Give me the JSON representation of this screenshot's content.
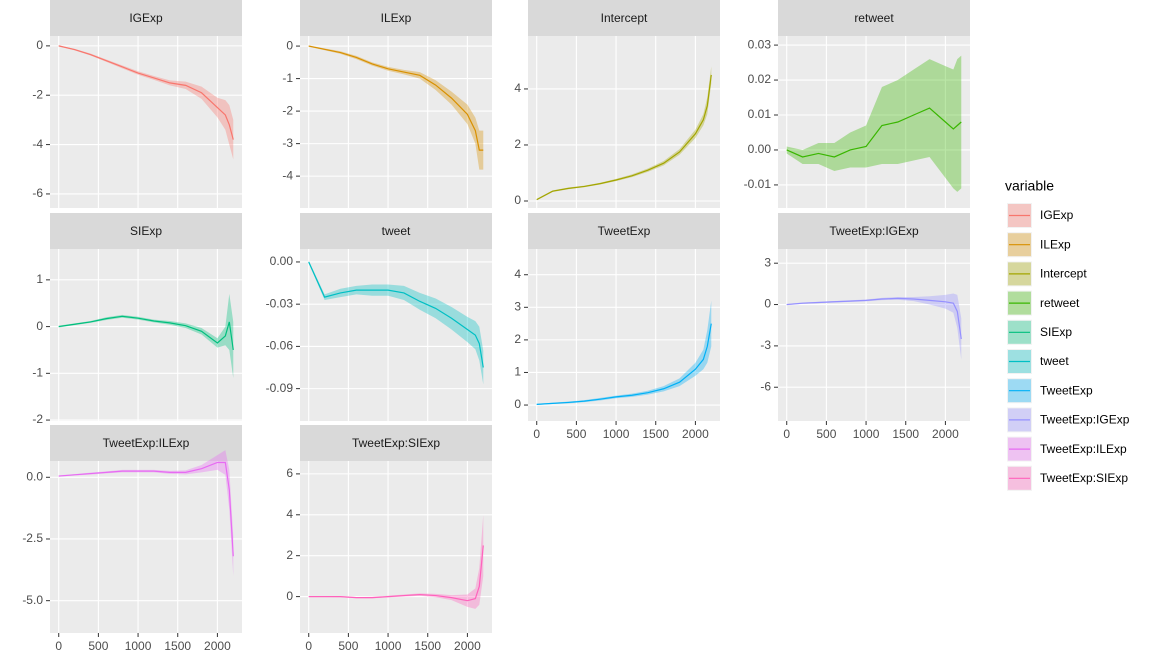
{
  "legend": {
    "title": "variable"
  },
  "chart_data": [
    {
      "type": "line",
      "title": "IGExp",
      "x": [
        0,
        200,
        400,
        600,
        800,
        1000,
        1200,
        1400,
        1600,
        1800,
        2000,
        2100,
        2150,
        2200
      ],
      "series": [
        {
          "name": "IGExp",
          "color": "#F8766D",
          "values": [
            0,
            -0.15,
            -0.35,
            -0.6,
            -0.85,
            -1.1,
            -1.3,
            -1.5,
            -1.6,
            -1.9,
            -2.5,
            -2.8,
            -3.2,
            -3.8
          ],
          "errors": [
            0.02,
            0.03,
            0.04,
            0.05,
            0.06,
            0.07,
            0.08,
            0.1,
            0.15,
            0.25,
            0.4,
            0.6,
            0.8,
            0.8
          ]
        }
      ],
      "xlim": [
        -110,
        2310
      ],
      "xticks": [
        0,
        500,
        1000,
        1500,
        2000
      ],
      "ylim": [
        -6.57,
        0.4
      ],
      "yticks": [
        0,
        -2,
        -4,
        -6
      ],
      "grid": true
    },
    {
      "type": "line",
      "title": "ILExp",
      "x": [
        0,
        200,
        400,
        600,
        800,
        1000,
        1200,
        1400,
        1600,
        1800,
        2000,
        2100,
        2150,
        2200
      ],
      "series": [
        {
          "name": "ILExp",
          "color": "#D89000",
          "values": [
            0,
            -0.1,
            -0.2,
            -0.35,
            -0.55,
            -0.7,
            -0.8,
            -0.9,
            -1.2,
            -1.6,
            -2.1,
            -2.6,
            -3.2,
            -3.2
          ],
          "errors": [
            0.02,
            0.03,
            0.04,
            0.05,
            0.05,
            0.06,
            0.07,
            0.1,
            0.15,
            0.2,
            0.3,
            0.4,
            0.6,
            0.6
          ]
        }
      ],
      "xlim": [
        -110,
        2310
      ],
      "xticks": [
        0,
        500,
        1000,
        1500,
        2000
      ],
      "ylim": [
        -4.98,
        0.31
      ],
      "yticks": [
        0,
        -1,
        -2,
        -3,
        -4
      ],
      "grid": true
    },
    {
      "type": "line",
      "title": "Intercept",
      "x": [
        0,
        200,
        400,
        600,
        800,
        1000,
        1200,
        1400,
        1600,
        1800,
        2000,
        2100,
        2150,
        2200
      ],
      "series": [
        {
          "name": "Intercept",
          "color": "#A3A500",
          "values": [
            0.05,
            0.35,
            0.45,
            0.52,
            0.62,
            0.75,
            0.9,
            1.1,
            1.35,
            1.75,
            2.4,
            2.9,
            3.4,
            4.5
          ],
          "errors": [
            0.03,
            0.03,
            0.03,
            0.03,
            0.03,
            0.04,
            0.05,
            0.06,
            0.08,
            0.1,
            0.15,
            0.2,
            0.3,
            0.3
          ]
        }
      ],
      "xlim": [
        -110,
        2310
      ],
      "xticks": [
        0,
        500,
        1000,
        1500,
        2000
      ],
      "ylim": [
        -0.25,
        5.89
      ],
      "yticks": [
        0,
        2,
        4
      ],
      "grid": true
    },
    {
      "type": "line",
      "title": "retweet",
      "x": [
        0,
        200,
        400,
        600,
        800,
        1000,
        1200,
        1400,
        1600,
        1800,
        2000,
        2100,
        2150,
        2200
      ],
      "series": [
        {
          "name": "retweet",
          "color": "#39B600",
          "values": [
            0,
            -0.002,
            -0.001,
            -0.002,
            0,
            0.001,
            0.007,
            0.008,
            0.01,
            0.012,
            0.008,
            0.006,
            0.007,
            0.008
          ],
          "errors": [
            0.001,
            0.002,
            0.003,
            0.004,
            0.005,
            0.006,
            0.011,
            0.012,
            0.013,
            0.014,
            0.016,
            0.017,
            0.019,
            0.019
          ]
        }
      ],
      "xlim": [
        -110,
        2310
      ],
      "xticks": [
        0,
        500,
        1000,
        1500,
        2000
      ],
      "ylim": [
        -0.0166,
        0.0326
      ],
      "yticks": [
        -0.01,
        {
          "value": 0,
          "label": "0.00"
        },
        0.01,
        0.02,
        0.03
      ],
      "grid": true
    },
    {
      "type": "line",
      "title": "SIExp",
      "x": [
        0,
        200,
        400,
        600,
        800,
        1000,
        1200,
        1400,
        1600,
        1800,
        2000,
        2100,
        2150,
        2200
      ],
      "series": [
        {
          "name": "SIExp",
          "color": "#00BF7D",
          "values": [
            0,
            0.05,
            0.1,
            0.17,
            0.22,
            0.18,
            0.12,
            0.08,
            0.02,
            -0.1,
            -0.35,
            -0.2,
            0.1,
            -0.5
          ],
          "errors": [
            0.02,
            0.02,
            0.02,
            0.03,
            0.03,
            0.03,
            0.03,
            0.04,
            0.05,
            0.07,
            0.1,
            0.2,
            0.6,
            0.6
          ]
        }
      ],
      "xlim": [
        -110,
        2310
      ],
      "xticks": [
        0,
        500,
        1000,
        1500,
        2000
      ],
      "ylim": [
        -2.02,
        1.66
      ],
      "yticks": [
        -2,
        -1,
        0,
        1
      ],
      "grid": true
    },
    {
      "type": "line",
      "title": "tweet",
      "x": [
        0,
        200,
        400,
        600,
        800,
        1000,
        1200,
        1400,
        1600,
        1800,
        2000,
        2100,
        2150,
        2200
      ],
      "series": [
        {
          "name": "tweet",
          "color": "#00BFC4",
          "values": [
            0,
            -0.025,
            -0.022,
            -0.02,
            -0.02,
            -0.02,
            -0.022,
            -0.028,
            -0.033,
            -0.04,
            -0.048,
            -0.052,
            -0.058,
            -0.075
          ],
          "errors": [
            0.001,
            0.002,
            0.003,
            0.003,
            0.004,
            0.004,
            0.005,
            0.006,
            0.007,
            0.008,
            0.009,
            0.01,
            0.012,
            0.012
          ]
        }
      ],
      "xlim": [
        -110,
        2310
      ],
      "xticks": [
        0,
        500,
        1000,
        1500,
        2000
      ],
      "ylim": [
        -0.113,
        0.0092
      ],
      "yticks": [
        {
          "value": 0,
          "label": "0.00"
        },
        -0.03,
        -0.06,
        -0.09
      ],
      "grid": true
    },
    {
      "type": "line",
      "title": "TweetExp",
      "x": [
        0,
        200,
        400,
        600,
        800,
        1000,
        1200,
        1400,
        1600,
        1800,
        2000,
        2100,
        2150,
        2200
      ],
      "series": [
        {
          "name": "TweetExp",
          "color": "#00B0F6",
          "values": [
            0.02,
            0.05,
            0.08,
            0.12,
            0.18,
            0.25,
            0.3,
            0.38,
            0.5,
            0.7,
            1.1,
            1.4,
            1.8,
            2.5
          ],
          "errors": [
            0.02,
            0.02,
            0.03,
            0.03,
            0.04,
            0.04,
            0.05,
            0.06,
            0.08,
            0.12,
            0.2,
            0.3,
            0.5,
            0.7
          ]
        }
      ],
      "xlim": [
        -110,
        2310
      ],
      "xticks": [
        0,
        500,
        1000,
        1500,
        2000
      ],
      "ylim": [
        -0.49,
        4.79
      ],
      "yticks": [
        0,
        1,
        2,
        3,
        4
      ],
      "grid": true
    },
    {
      "type": "line",
      "title": "TweetExp:IGExp",
      "x": [
        0,
        200,
        400,
        600,
        800,
        1000,
        1200,
        1400,
        1600,
        1800,
        2000,
        2100,
        2150,
        2200
      ],
      "series": [
        {
          "name": "TweetExp:IGExp",
          "color": "#9590FF",
          "values": [
            0,
            0.1,
            0.15,
            0.2,
            0.25,
            0.3,
            0.4,
            0.45,
            0.4,
            0.3,
            0.2,
            0.1,
            -0.5,
            -2.5
          ],
          "errors": [
            0.05,
            0.05,
            0.05,
            0.06,
            0.06,
            0.07,
            0.08,
            0.1,
            0.15,
            0.3,
            0.5,
            0.7,
            1.2,
            1.5
          ]
        }
      ],
      "xlim": [
        -110,
        2310
      ],
      "xticks": [
        0,
        500,
        1000,
        1500,
        2000
      ],
      "ylim": [
        -8.45,
        4.03
      ],
      "yticks": [
        3,
        0,
        -3,
        -6
      ],
      "grid": true
    },
    {
      "type": "line",
      "title": "TweetExp:ILExp",
      "x": [
        0,
        200,
        400,
        600,
        800,
        1000,
        1200,
        1400,
        1600,
        1800,
        2000,
        2100,
        2150,
        2200
      ],
      "series": [
        {
          "name": "TweetExp:ILExp",
          "color": "#E76BF3",
          "values": [
            0.05,
            0.1,
            0.15,
            0.2,
            0.25,
            0.25,
            0.25,
            0.2,
            0.2,
            0.35,
            0.6,
            0.6,
            -0.5,
            -3.2
          ],
          "errors": [
            0.03,
            0.03,
            0.04,
            0.04,
            0.05,
            0.05,
            0.05,
            0.06,
            0.08,
            0.15,
            0.3,
            0.5,
            0.8,
            0.8
          ]
        }
      ],
      "xlim": [
        -110,
        2310
      ],
      "xticks": [
        0,
        500,
        1000,
        1500,
        2000
      ],
      "ylim": [
        -6.31,
        0.66
      ],
      "yticks": [
        {
          "value": 0,
          "label": "0.0"
        },
        -2.5,
        {
          "value": -5,
          "label": "-5.0"
        }
      ],
      "grid": true
    },
    {
      "type": "line",
      "title": "TweetExp:SIExp",
      "x": [
        0,
        200,
        400,
        600,
        800,
        1000,
        1200,
        1400,
        1600,
        1800,
        2000,
        2100,
        2150,
        2200
      ],
      "series": [
        {
          "name": "TweetExp:SIExp",
          "color": "#FF62BC",
          "values": [
            0,
            0,
            0,
            -0.05,
            -0.05,
            0,
            0.05,
            0.1,
            0.05,
            -0.05,
            -0.2,
            -0.1,
            0.5,
            2.5
          ],
          "errors": [
            0.02,
            0.02,
            0.03,
            0.03,
            0.04,
            0.04,
            0.05,
            0.06,
            0.08,
            0.12,
            0.3,
            0.5,
            0.9,
            1.5
          ]
        }
      ],
      "xlim": [
        -110,
        2310
      ],
      "xticks": [
        0,
        500,
        1000,
        1500,
        2000
      ],
      "ylim": [
        -1.78,
        6.63
      ],
      "yticks": [
        0,
        2,
        4,
        6
      ],
      "grid": true
    }
  ]
}
